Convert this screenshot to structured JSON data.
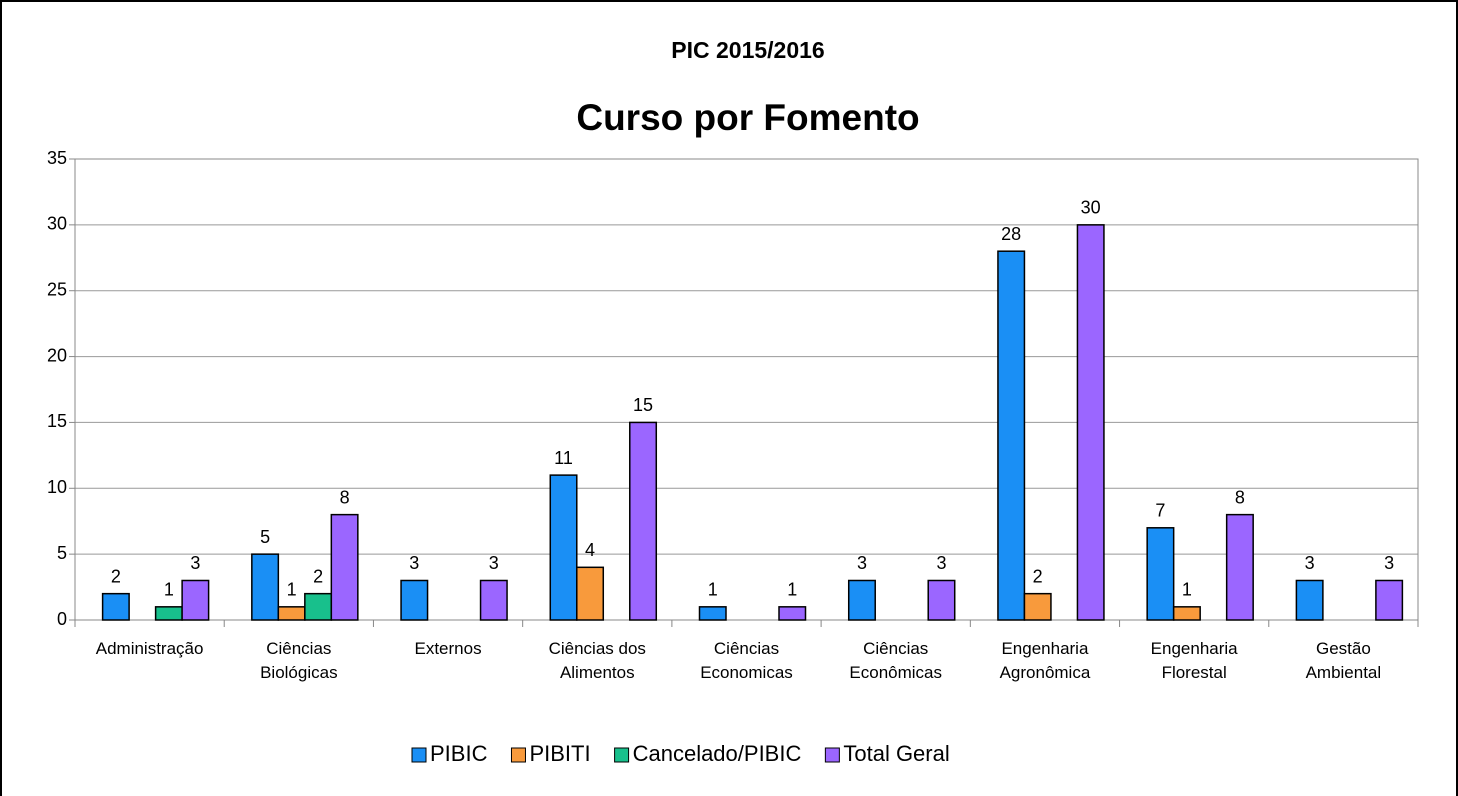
{
  "chart_data": {
    "type": "bar",
    "title": "PIC 2015/2016",
    "subtitle": "Curso por Fomento",
    "categories": [
      "Administração",
      "Ciências\nBiológicas",
      "Externos",
      "Ciências dos\nAlimentos",
      "Ciências\nEconomicas",
      "Ciências\nEconômicas",
      "Engenharia\nAgronômica",
      "Engenharia\nFlorestal",
      "Gestão\nAmbiental"
    ],
    "series": [
      {
        "name": "PIBIC",
        "color": "#1a8ff5",
        "values": [
          2,
          5,
          3,
          11,
          1,
          3,
          28,
          7,
          3
        ]
      },
      {
        "name": "PIBITI",
        "color": "#f89a3c",
        "values": [
          null,
          1,
          null,
          4,
          null,
          null,
          2,
          1,
          null
        ]
      },
      {
        "name": "Cancelado/PIBIC",
        "color": "#18c08c",
        "values": [
          1,
          2,
          null,
          null,
          null,
          null,
          null,
          null,
          null
        ]
      },
      {
        "name": "Total Geral",
        "color": "#9b66ff",
        "values": [
          3,
          8,
          3,
          15,
          1,
          3,
          30,
          8,
          3
        ]
      }
    ],
    "ylim": [
      0,
      35
    ],
    "yticks": [
      0,
      5,
      10,
      15,
      20,
      25,
      30,
      35
    ],
    "grid": true,
    "legend": "bottom"
  }
}
